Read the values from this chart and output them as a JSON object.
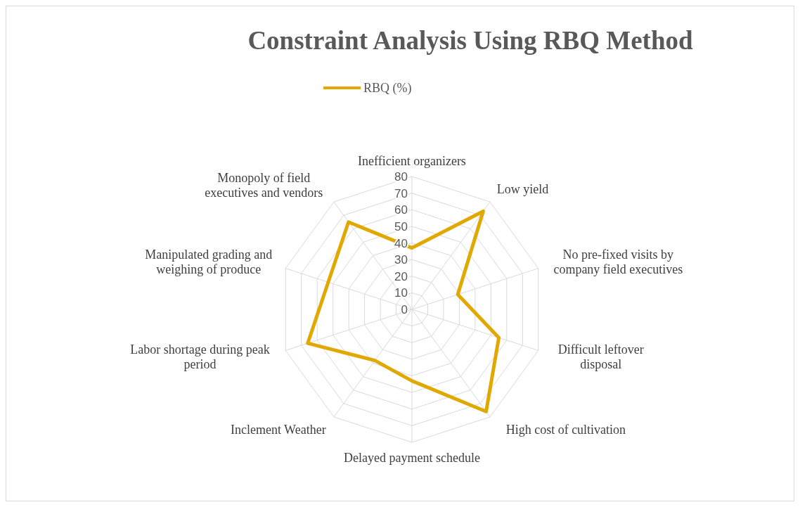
{
  "chart_data": {
    "type": "radar",
    "title": "Constraint Analysis Using RBQ Method",
    "categories": [
      "Inefficient organizers",
      "Low yield",
      "No pre-fixed visits by company field executives",
      "Difficult leftover disposal",
      "High cost of cultivation",
      "Delayed payment schedule",
      "Inclement Weather",
      "Labor shortage during peak period",
      "Manipulated grading and weighing of produce",
      "Monopoly of field executives and vendors"
    ],
    "series": [
      {
        "name": "RBQ (%)",
        "color": "#e0a800",
        "values": [
          37,
          73,
          29,
          55,
          76,
          43,
          38,
          66,
          53,
          65
        ]
      }
    ],
    "ylim": [
      0,
      80
    ],
    "yticks": [
      0,
      10,
      20,
      30,
      40,
      50,
      60,
      70,
      80
    ],
    "grid": true,
    "legend": "top"
  }
}
